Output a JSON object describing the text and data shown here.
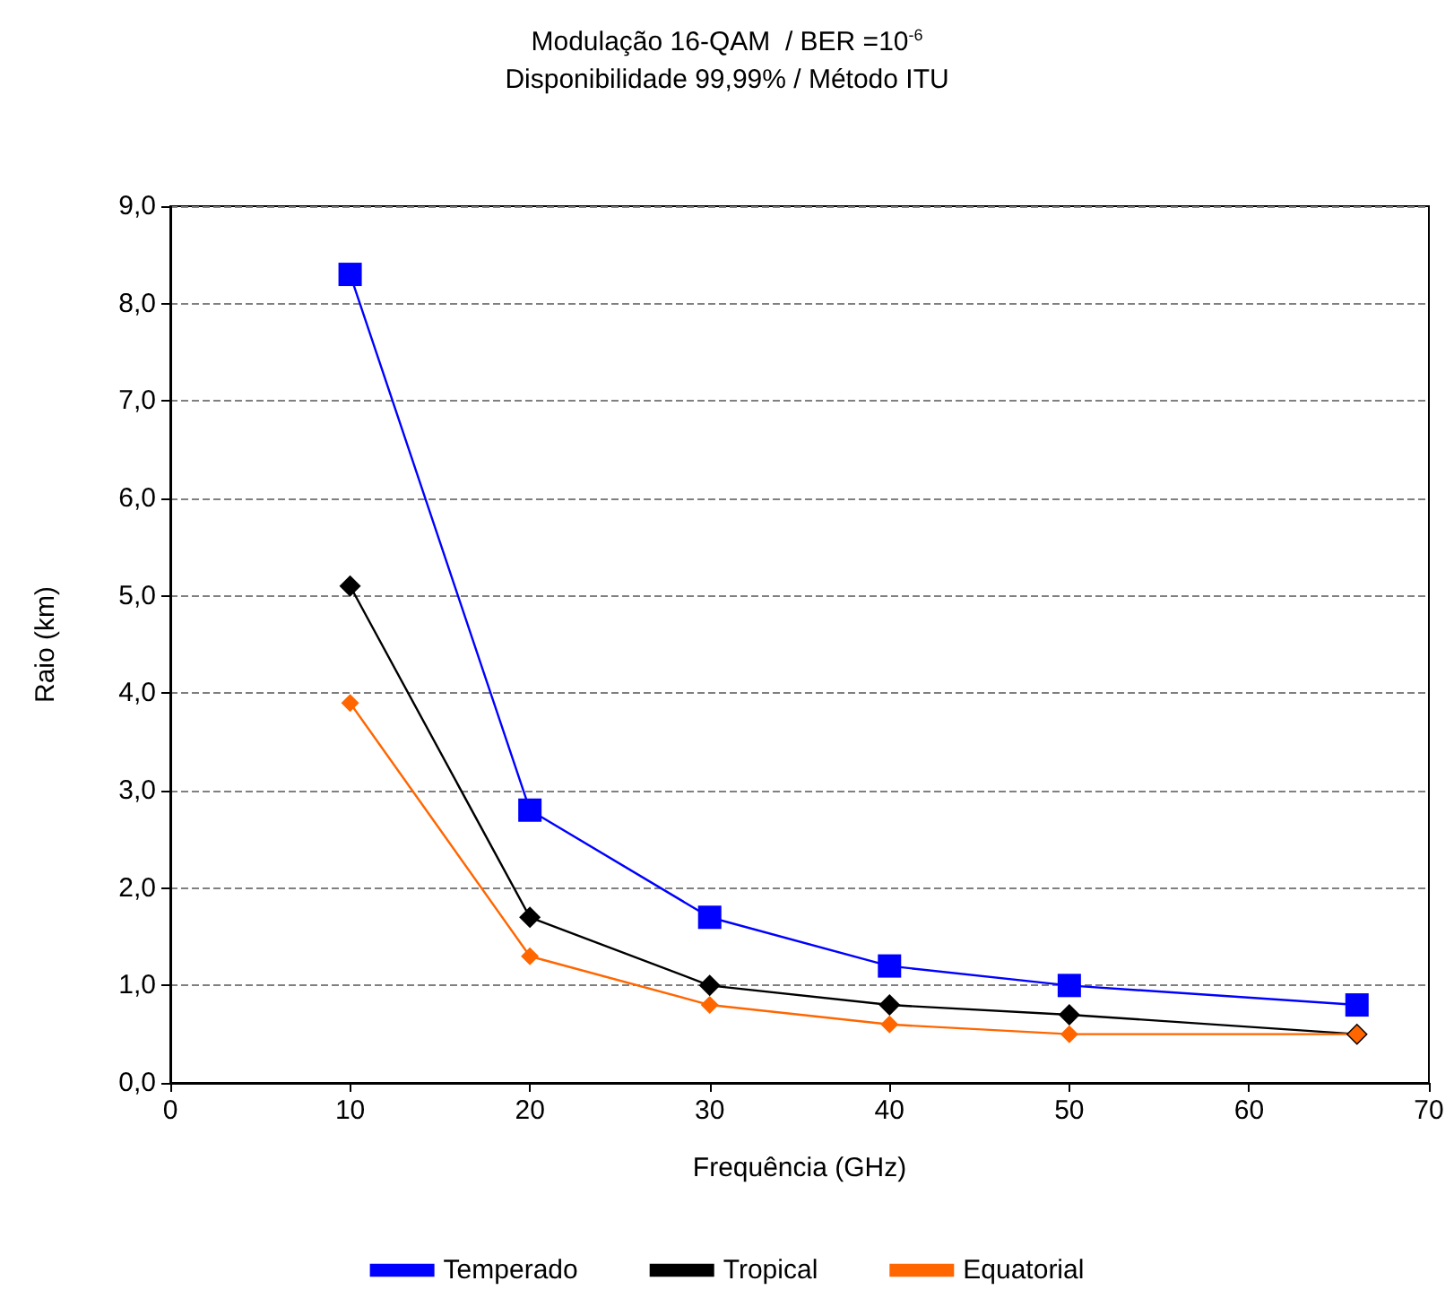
{
  "chart_data": {
    "type": "line",
    "title": "Modulação 16-QAM  / BER =10$^{-6}$",
    "subtitle": "Disponibilidade 99,99% / Método ITU",
    "xlabel": "Frequência (GHz)",
    "ylabel": "Raio (km)",
    "x": [
      10,
      20,
      30,
      40,
      50,
      66
    ],
    "series": [
      {
        "name": "Temperado",
        "color": "#0000ff",
        "marker": "square",
        "values": [
          8.3,
          2.8,
          1.7,
          1.2,
          1.0,
          0.8
        ]
      },
      {
        "name": "Tropical",
        "color": "#000000",
        "marker": "diamond",
        "values": [
          5.1,
          1.7,
          1.0,
          0.8,
          0.7,
          0.5
        ]
      },
      {
        "name": "Equatorial",
        "color": "#ff6600",
        "marker": "diamond",
        "values": [
          3.9,
          1.3,
          0.8,
          0.6,
          0.5,
          0.5
        ]
      }
    ],
    "xlim": [
      0,
      70
    ],
    "xticks": [
      0,
      10,
      20,
      30,
      40,
      50,
      60,
      70
    ],
    "ylim": [
      0,
      9
    ],
    "yticks": [
      {
        "value": 0,
        "label": "0,0"
      },
      {
        "value": 1,
        "label": "1,0"
      },
      {
        "value": 2,
        "label": "2,0"
      },
      {
        "value": 3,
        "label": "3,0"
      },
      {
        "value": 4,
        "label": "4,0"
      },
      {
        "value": 5,
        "label": "5,0"
      },
      {
        "value": 6,
        "label": "6,0"
      },
      {
        "value": 7,
        "label": "7,0"
      },
      {
        "value": 8,
        "label": "8,0"
      },
      {
        "value": 9,
        "label": "9,0"
      }
    ],
    "grid": "y",
    "legend": "bottom",
    "line_style": "solid"
  }
}
